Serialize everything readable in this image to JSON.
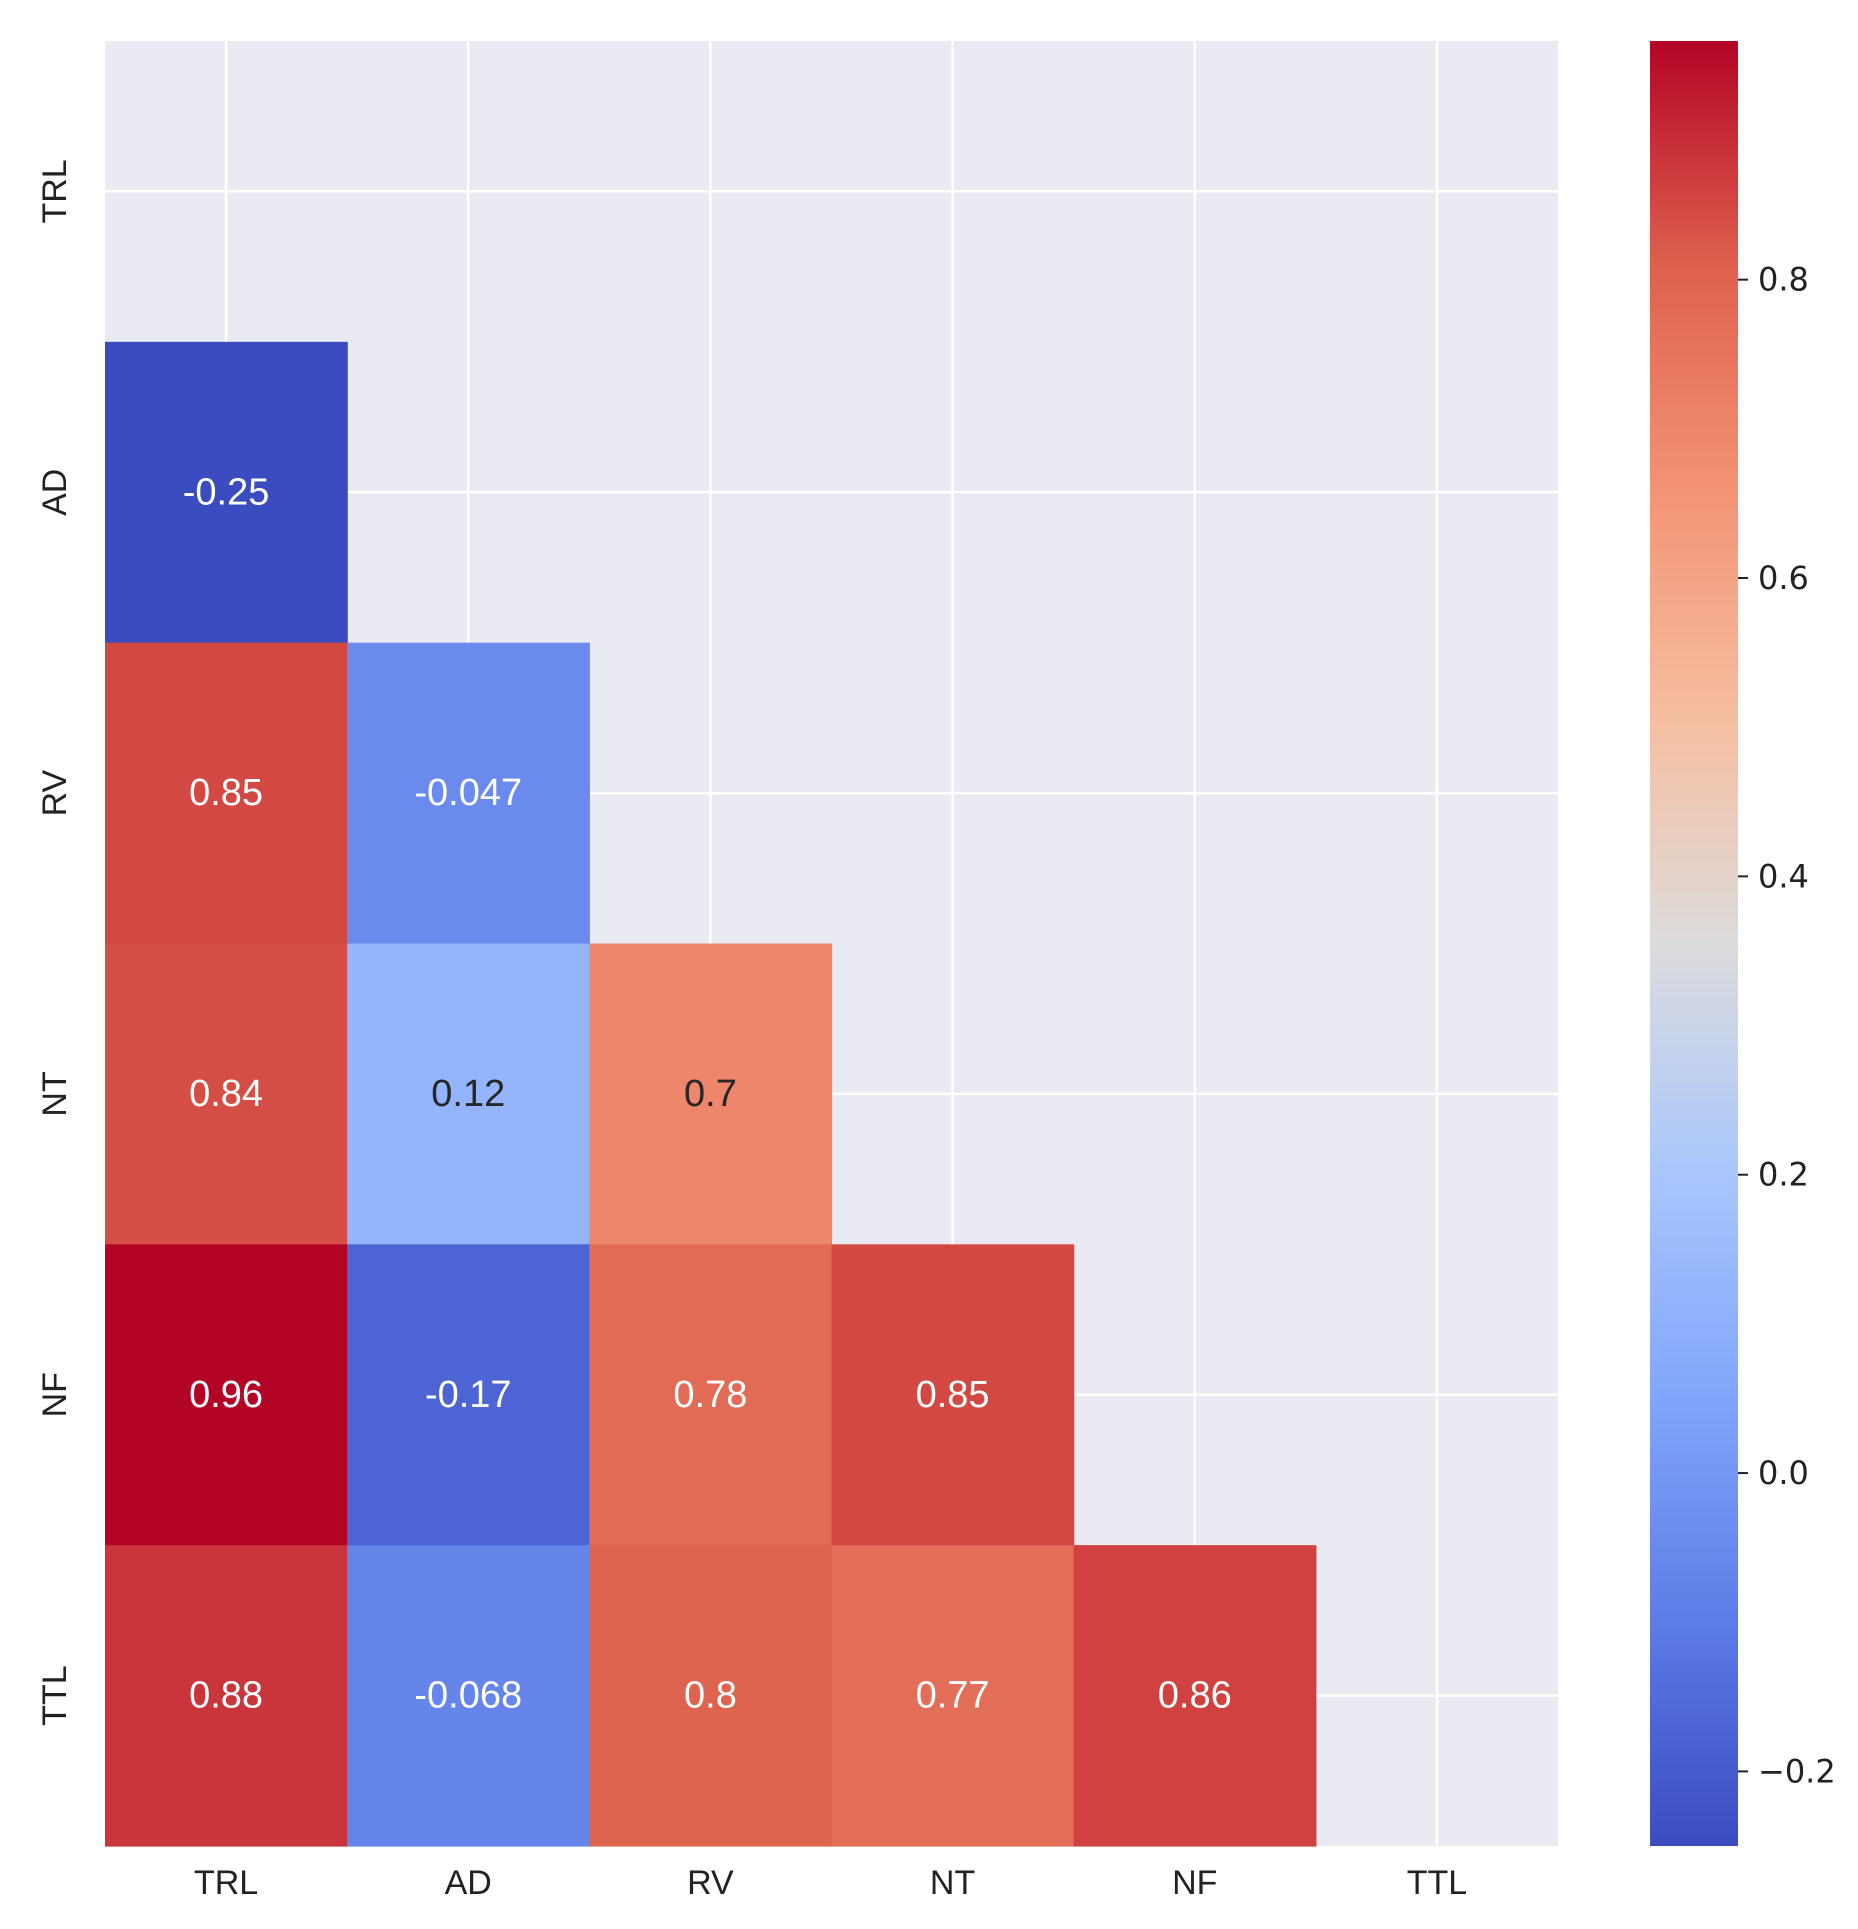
{
  "chart_data": {
    "type": "heatmap",
    "title": "",
    "xlabel": "",
    "ylabel": "",
    "variables": [
      "TRL",
      "AD",
      "RV",
      "NT",
      "NF",
      "TTL"
    ],
    "mask": "upper-triangle-including-diagonal",
    "grid": true,
    "values": [
      [
        null,
        null,
        null,
        null,
        null,
        null
      ],
      [
        -0.25,
        null,
        null,
        null,
        null,
        null
      ],
      [
        0.85,
        -0.047,
        null,
        null,
        null,
        null
      ],
      [
        0.84,
        0.12,
        0.7,
        null,
        null,
        null
      ],
      [
        0.96,
        -0.17,
        0.78,
        0.85,
        null,
        null
      ],
      [
        0.88,
        -0.068,
        0.8,
        0.77,
        0.86,
        null
      ]
    ],
    "labels": [
      [
        null,
        null,
        null,
        null,
        null,
        null
      ],
      [
        "-0.25",
        null,
        null,
        null,
        null,
        null
      ],
      [
        "0.85",
        "-0.047",
        null,
        null,
        null,
        null
      ],
      [
        "0.84",
        "0.12",
        "0.7",
        null,
        null,
        null
      ],
      [
        "0.96",
        "-0.17",
        "0.78",
        "0.85",
        null,
        null
      ],
      [
        "0.88",
        "-0.068",
        "0.8",
        "0.77",
        "0.86",
        null
      ]
    ],
    "colorbar": {
      "colormap": "coolwarm",
      "vmin": -0.25,
      "vmax": 0.96,
      "ticks": [
        -0.2,
        0.0,
        0.2,
        0.4,
        0.6,
        0.8
      ],
      "tick_labels": [
        "−0.2",
        "0.0",
        "0.2",
        "0.4",
        "0.6",
        "0.8"
      ],
      "placement": "right"
    },
    "colors": {
      "background": "#eaeaf2",
      "grid": "#ffffff",
      "text_light": "#ffffff",
      "text_dark": "#262626"
    }
  }
}
